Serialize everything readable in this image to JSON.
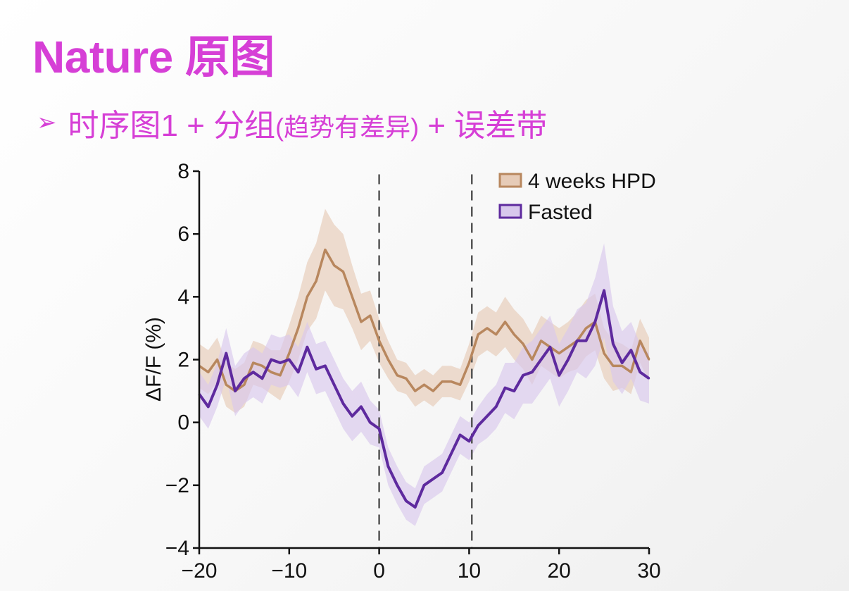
{
  "slide": {
    "title": "Nature 原图",
    "bullet_arrow": "➢",
    "bullet_main": "时序图1 + 分组",
    "bullet_paren": "(趋势有差异)",
    "bullet_tail": " + 误差带"
  },
  "colors": {
    "title": "#d63fd6",
    "series_hpd": "#b8875e",
    "series_hpd_band": "#e6cbb7",
    "series_fasted": "#5e2a9e",
    "series_fasted_band": "#d8c8ec"
  },
  "chart_data": {
    "type": "line",
    "title": "",
    "xlabel": "",
    "ylabel": "ΔF/F (%)",
    "xlim": [
      -20,
      30
    ],
    "ylim": [
      -4,
      8
    ],
    "x_ticks": [
      -20,
      -10,
      0,
      10,
      20,
      30
    ],
    "x_tick_labels": [
      "−20",
      "−10",
      "0",
      "10",
      "20",
      "30"
    ],
    "y_ticks": [
      -4,
      -2,
      0,
      2,
      4,
      6,
      8
    ],
    "y_tick_labels": [
      "−4",
      "−2",
      "0",
      "2",
      "4",
      "6",
      "8"
    ],
    "vertical_dashed_lines": [
      0,
      10.3
    ],
    "legend_position": "top-right",
    "grid": false,
    "x": [
      -20,
      -19,
      -18,
      -17,
      -16,
      -15,
      -14,
      -13,
      -12,
      -11,
      -10,
      -9,
      -8,
      -7,
      -6,
      -5,
      -4,
      -3,
      -2,
      -1,
      0,
      1,
      2,
      3,
      4,
      5,
      6,
      7,
      8,
      9,
      10,
      11,
      12,
      13,
      14,
      15,
      16,
      17,
      18,
      19,
      20,
      21,
      22,
      23,
      24,
      25,
      26,
      27,
      28,
      29,
      30
    ],
    "series": [
      {
        "name": "4 weeks HPD",
        "values": [
          1.8,
          1.6,
          2.0,
          1.2,
          1.0,
          1.2,
          1.9,
          1.8,
          1.6,
          1.5,
          2.2,
          3.0,
          4.0,
          4.5,
          5.5,
          5.0,
          4.8,
          4.0,
          3.2,
          3.4,
          2.6,
          2.0,
          1.5,
          1.4,
          1.0,
          1.2,
          1.0,
          1.3,
          1.3,
          1.2,
          1.9,
          2.8,
          3.0,
          2.8,
          3.2,
          2.8,
          2.5,
          2.0,
          2.6,
          2.4,
          2.2,
          2.4,
          2.6,
          3.0,
          3.2,
          2.2,
          1.8,
          1.8,
          1.6,
          2.6,
          2.0
        ],
        "error": [
          0.7,
          0.7,
          0.7,
          0.7,
          0.7,
          0.7,
          0.7,
          0.7,
          0.7,
          0.8,
          0.9,
          1.0,
          1.1,
          1.2,
          1.3,
          1.3,
          1.2,
          1.0,
          0.9,
          0.8,
          0.7,
          0.6,
          0.5,
          0.5,
          0.5,
          0.5,
          0.5,
          0.5,
          0.5,
          0.5,
          0.6,
          0.7,
          0.7,
          0.7,
          0.8,
          0.8,
          0.8,
          0.8,
          0.8,
          0.8,
          0.8,
          0.8,
          0.9,
          0.9,
          0.9,
          0.8,
          0.8,
          0.7,
          0.7,
          0.7,
          0.7
        ]
      },
      {
        "name": "Fasted",
        "values": [
          0.9,
          0.5,
          1.2,
          2.2,
          1.0,
          1.4,
          1.6,
          1.4,
          2.0,
          1.9,
          2.0,
          1.6,
          2.4,
          1.7,
          1.8,
          1.2,
          0.6,
          0.2,
          0.5,
          0.0,
          -0.2,
          -1.4,
          -2.0,
          -2.5,
          -2.7,
          -2.0,
          -1.8,
          -1.6,
          -1.0,
          -0.4,
          -0.6,
          -0.1,
          0.2,
          0.5,
          1.1,
          1.0,
          1.5,
          1.6,
          2.0,
          2.4,
          1.5,
          2.0,
          2.6,
          2.6,
          3.2,
          4.2,
          2.5,
          1.9,
          2.3,
          1.6,
          1.4
        ],
        "error": [
          0.7,
          0.7,
          0.7,
          0.8,
          0.8,
          0.8,
          0.8,
          0.8,
          0.8,
          0.8,
          0.8,
          0.8,
          0.8,
          0.8,
          0.8,
          0.8,
          0.8,
          0.8,
          0.8,
          0.7,
          0.6,
          0.6,
          0.6,
          0.6,
          0.6,
          0.6,
          0.6,
          0.6,
          0.6,
          0.6,
          0.6,
          0.6,
          0.7,
          0.7,
          0.8,
          0.9,
          0.9,
          1.0,
          1.0,
          1.0,
          1.0,
          1.0,
          1.0,
          1.2,
          1.4,
          1.5,
          1.2,
          1.0,
          0.9,
          0.9,
          0.8
        ]
      }
    ]
  }
}
